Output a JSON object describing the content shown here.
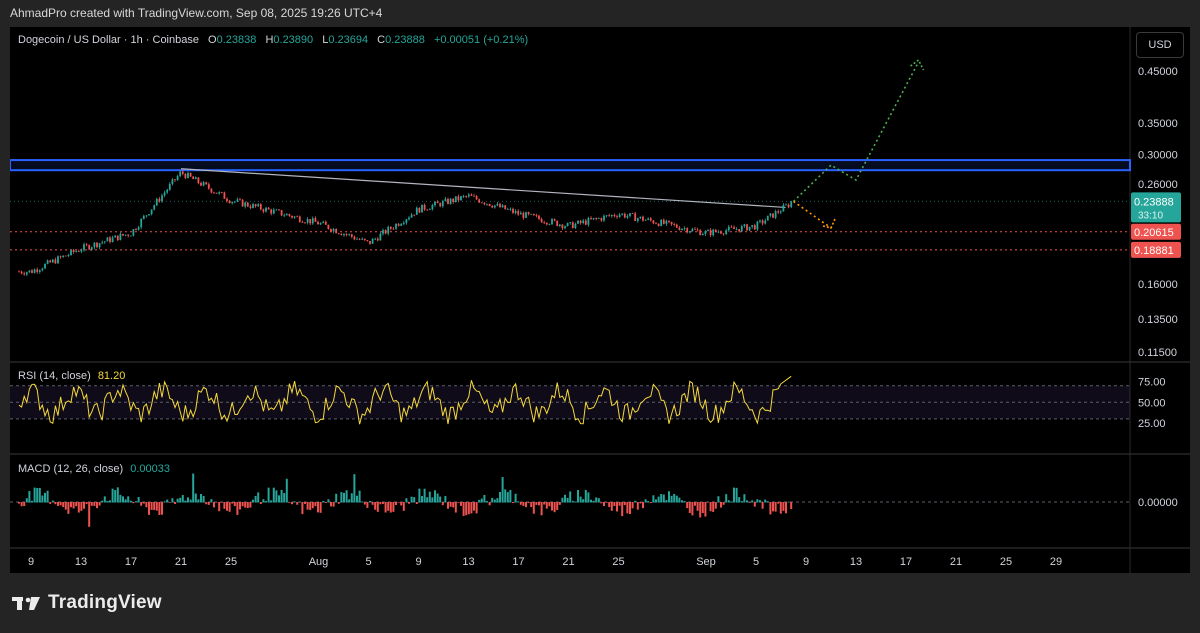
{
  "header": {
    "created_text": "AhmadPro created with TradingView.com, Sep 08, 2025 19:26 UTC+4"
  },
  "legend": {
    "symbol": "Dogecoin / US Dollar · 1h · Coinbase",
    "o_label": "O",
    "o_value": "0.23838",
    "h_label": "H",
    "h_value": "0.23890",
    "l_label": "L",
    "l_value": "0.23694",
    "c_label": "C",
    "c_value": "0.23888",
    "change": "+0.00051 (+0.21%)"
  },
  "currency_button": "USD",
  "price_badges": {
    "current": "0.23888",
    "countdown": "33:10",
    "support_high": "0.20615",
    "support_low": "0.18881"
  },
  "rsi_legend": {
    "label": "RSI (14, close)",
    "value": "81.20"
  },
  "macd_legend": {
    "label": "MACD (12, 26, close)",
    "value": "0.00033"
  },
  "footer": {
    "brand": "TradingView"
  },
  "colors": {
    "background": "#000000",
    "up": "#26a69a",
    "down": "#ef5350",
    "rsi_line": "#f5d93a",
    "resistance_zone": "#2962ff",
    "projection_up": "#4caf50",
    "projection_down": "#ff9800",
    "support_line": "#ef5350",
    "trendline": "#b2b5be"
  },
  "chart_data": [
    {
      "type": "candlestick",
      "title": "Dogecoin / US Dollar · 1h · Coinbase",
      "y_scale": "log",
      "y_ticks": [
        "0.45000",
        "0.35000",
        "0.30000",
        "0.26000",
        "0.16000",
        "0.13500",
        "0.11500"
      ],
      "x_ticks": [
        "9",
        "13",
        "17",
        "21",
        "25",
        "Aug",
        "5",
        "9",
        "13",
        "17",
        "21",
        "25",
        "Sep",
        "5",
        "9",
        "13",
        "17",
        "21",
        "25",
        "29"
      ],
      "approx_close_path": [
        [
          "Jul 9",
          0.17
        ],
        [
          "Jul 13",
          0.19
        ],
        [
          "Jul 17",
          0.205
        ],
        [
          "Jul 21",
          0.275
        ],
        [
          "Jul 25",
          0.24
        ],
        [
          "Aug 1",
          0.215
        ],
        [
          "Aug 5",
          0.195
        ],
        [
          "Aug 9",
          0.23
        ],
        [
          "Aug 13",
          0.245
        ],
        [
          "Aug 17",
          0.225
        ],
        [
          "Aug 21",
          0.212
        ],
        [
          "Aug 25",
          0.225
        ],
        [
          "Sep 1",
          0.205
        ],
        [
          "Sep 5",
          0.212
        ],
        [
          "Sep 8",
          0.2389
        ]
      ],
      "annotations": {
        "resistance_zone": [
          0.278,
          0.292
        ],
        "support_lines": [
          0.20615,
          0.18881
        ],
        "descending_trendline": [
          [
            "Jul 21",
            0.28
          ],
          [
            "Sep 8",
            0.232
          ]
        ],
        "bullish_projection": [
          [
            "Sep 8",
            0.2389
          ],
          [
            "Sep 11",
            0.285
          ],
          [
            "Sep 13",
            0.265
          ],
          [
            "Sep 18",
            0.47
          ]
        ],
        "bearish_projection": [
          [
            "Sep 8",
            0.2389
          ],
          [
            "Sep 11",
            0.21
          ]
        ]
      }
    },
    {
      "type": "line",
      "title": "RSI (14, close)",
      "y_ticks": [
        "75.00",
        "50.00",
        "25.00"
      ],
      "bands": [
        70,
        30
      ],
      "last_value": 81.2
    },
    {
      "type": "bar",
      "title": "MACD (12, 26, close)",
      "y_ticks": [
        "0.00000"
      ],
      "last_value": 0.00033
    }
  ]
}
